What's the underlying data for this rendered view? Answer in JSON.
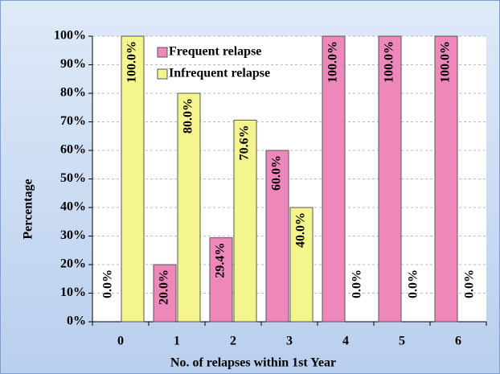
{
  "chart_data": {
    "type": "bar",
    "x_label": "No. of relapses within 1st Year",
    "y_label": "Percentage",
    "categories": [
      "0",
      "1",
      "2",
      "3",
      "4",
      "5",
      "6"
    ],
    "series": [
      {
        "name": "Frequent relapse",
        "color": "#ee88bb",
        "values": [
          0,
          20,
          29.4,
          60,
          100,
          100,
          100
        ],
        "value_labels": [
          "0.0%",
          "20.0%",
          "29.4%",
          "60.0%",
          "100.0%",
          "100.0%",
          "100.0%"
        ]
      },
      {
        "name": "Infrequent relapse",
        "color": "#f4f58c",
        "values": [
          100,
          80,
          70.6,
          40,
          0,
          0,
          0
        ],
        "value_labels": [
          "100.0%",
          "80.0%",
          "70.6%",
          "40.0%",
          "0.0%",
          "0.0%",
          "0.0%"
        ]
      }
    ],
    "ylim": [
      0,
      100
    ],
    "yticks": [
      {
        "value": 0,
        "label": "0%"
      },
      {
        "value": 10,
        "label": "10%"
      },
      {
        "value": 20,
        "label": "20%"
      },
      {
        "value": 30,
        "label": "30%"
      },
      {
        "value": 40,
        "label": "40%"
      },
      {
        "value": 50,
        "label": "50%"
      },
      {
        "value": 60,
        "label": "60%"
      },
      {
        "value": 70,
        "label": "70%"
      },
      {
        "value": 80,
        "label": "80%"
      },
      {
        "value": 90,
        "label": "90%"
      },
      {
        "value": 100,
        "label": "100%"
      }
    ],
    "grid": true,
    "legend": "top-left"
  }
}
